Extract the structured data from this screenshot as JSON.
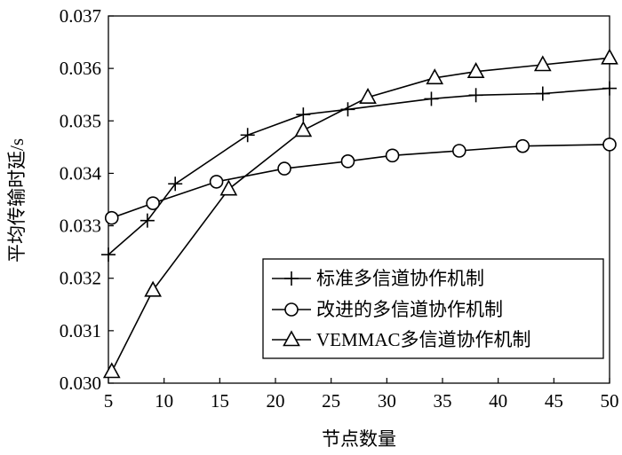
{
  "chart_data": {
    "type": "line",
    "xlabel": "节点数量",
    "ylabel": "平均传输时延/s",
    "xlim": [
      5,
      50
    ],
    "ylim": [
      0.03,
      0.037
    ],
    "xticks": [
      "5",
      "10",
      "15",
      "20",
      "25",
      "30",
      "35",
      "40",
      "45",
      "50"
    ],
    "yticks": [
      "0.030",
      "0.031",
      "0.032",
      "0.033",
      "0.034",
      "0.035",
      "0.036",
      "0.037"
    ],
    "grid": false,
    "legend_position": "bottom-right",
    "series": [
      {
        "name": "标准多信道协作机制",
        "marker": "plus",
        "x": [
          5,
          8.5,
          11,
          17.5,
          22.5,
          26.5,
          34,
          38,
          44,
          50
        ],
        "y": [
          0.03245,
          0.0331,
          0.0338,
          0.03473,
          0.03512,
          0.03522,
          0.03542,
          0.03549,
          0.03552,
          0.03562
        ]
      },
      {
        "name": "改进的多信道协作机制",
        "marker": "circle",
        "x": [
          5.3,
          9,
          14.7,
          20.8,
          26.5,
          30.5,
          36.5,
          42.2,
          50
        ],
        "y": [
          0.03315,
          0.03343,
          0.03384,
          0.03409,
          0.03423,
          0.03434,
          0.03443,
          0.03452,
          0.03455
        ]
      },
      {
        "name": "VEMMAC多信道协作机制",
        "marker": "triangle",
        "x": [
          5.3,
          9,
          15.8,
          22.5,
          28.3,
          34.3,
          38,
          44,
          50
        ],
        "y": [
          0.03022,
          0.03177,
          0.0337,
          0.03482,
          0.03545,
          0.03582,
          0.03594,
          0.03607,
          0.0362
        ]
      }
    ]
  }
}
